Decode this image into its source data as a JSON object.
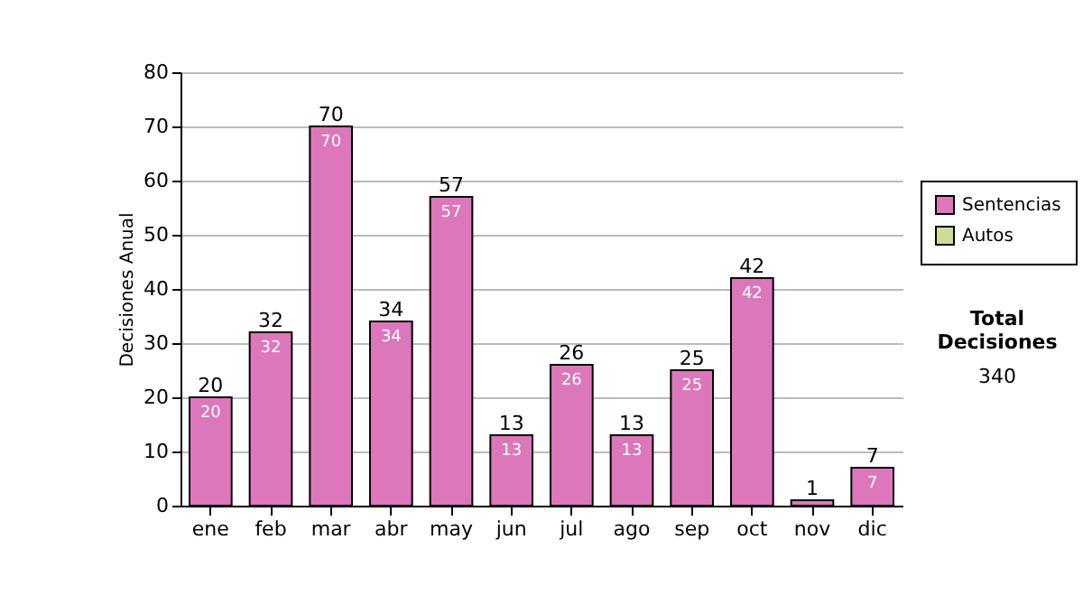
{
  "chart_data": {
    "type": "bar",
    "ylabel": "Decisiones Anual",
    "categories": [
      "ene",
      "feb",
      "mar",
      "abr",
      "may",
      "jun",
      "jul",
      "ago",
      "sep",
      "oct",
      "nov",
      "dic"
    ],
    "series": [
      {
        "name": "Sentencias",
        "color": "#dd77bb",
        "values": [
          20,
          32,
          70,
          34,
          57,
          13,
          26,
          13,
          25,
          42,
          1,
          7
        ],
        "value_labels": [
          "20",
          "32",
          "70",
          "34",
          "57",
          "13",
          "26",
          "13",
          "25",
          "42",
          null,
          "7"
        ]
      },
      {
        "name": "Autos",
        "color": "#ccdd99",
        "values": [
          null,
          null,
          null,
          null,
          null,
          null,
          null,
          null,
          null,
          null,
          null,
          null
        ]
      }
    ],
    "totals": [
      "20",
      "32",
      "70",
      "34",
      "57",
      "13",
      "26",
      "13",
      "25",
      "42",
      "1",
      "7"
    ],
    "ylim": [
      0,
      80
    ],
    "yticks": [
      0,
      10,
      20,
      30,
      40,
      50,
      60,
      70,
      80
    ],
    "grid": "y",
    "legend": "right",
    "annotations": [
      "Total Decisiones",
      "340"
    ]
  }
}
